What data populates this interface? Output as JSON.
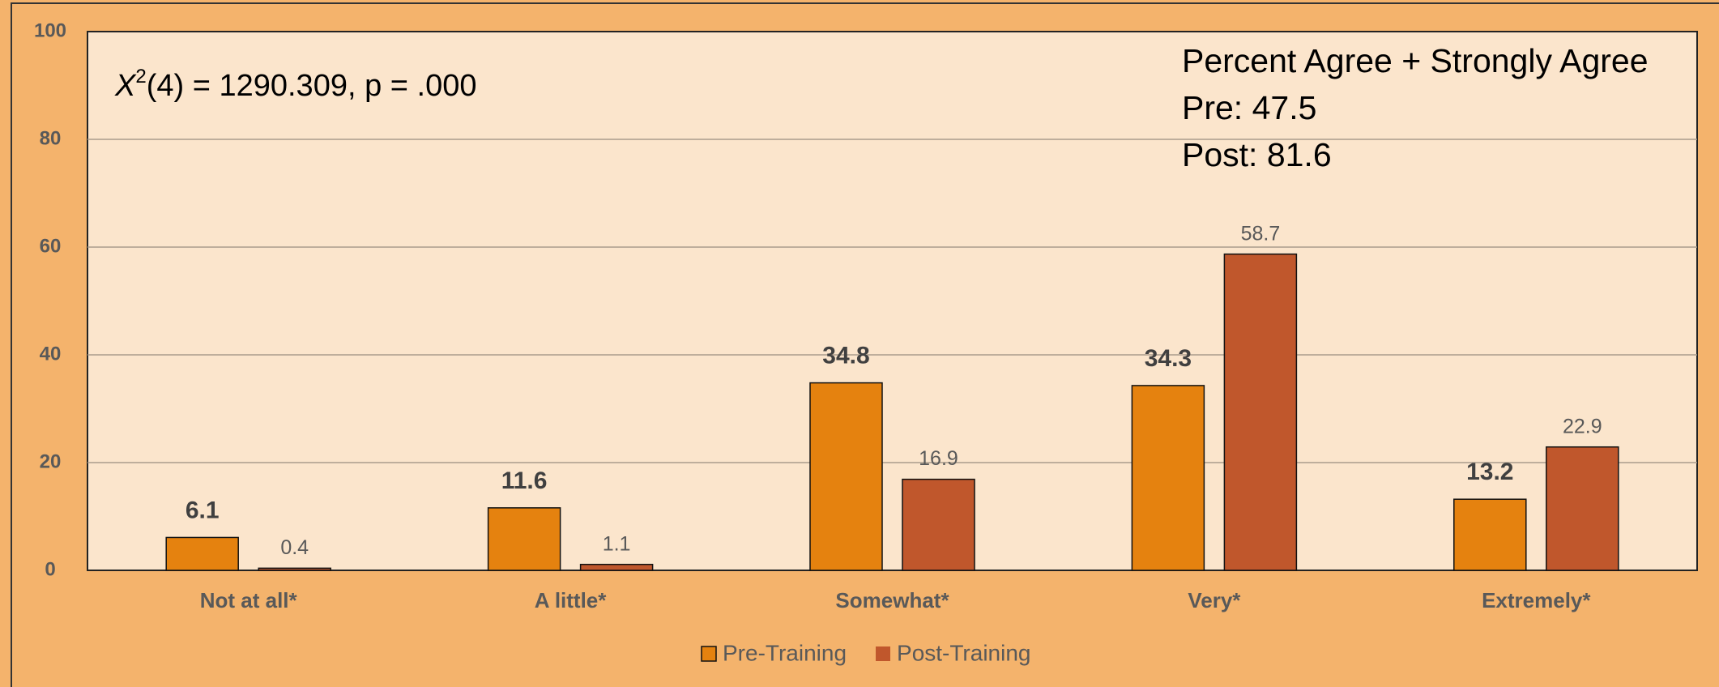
{
  "chart_data": {
    "type": "bar",
    "categories": [
      "Not at all*",
      "A little*",
      "Somewhat*",
      "Very*",
      "Extremely*"
    ],
    "series": [
      {
        "name": "Pre-Training",
        "color": "#e5820f",
        "values": [
          6.1,
          11.6,
          34.8,
          34.3,
          13.2
        ]
      },
      {
        "name": "Post-Training",
        "color": "#c0572c",
        "values": [
          0.4,
          1.1,
          16.9,
          58.7,
          22.9
        ]
      }
    ],
    "ylim": [
      0,
      100
    ],
    "yticks": [
      0,
      20,
      40,
      60,
      80,
      100
    ],
    "grid": true,
    "legend": "bottom",
    "stat_annotation": {
      "symbol": "X",
      "superscript": "2",
      "text": "(4) = 1290.309,   p = .000"
    },
    "summary_annotation": [
      "Percent Agree + Strongly Agree",
      "Pre: 47.5",
      "Post: 81.6"
    ]
  }
}
